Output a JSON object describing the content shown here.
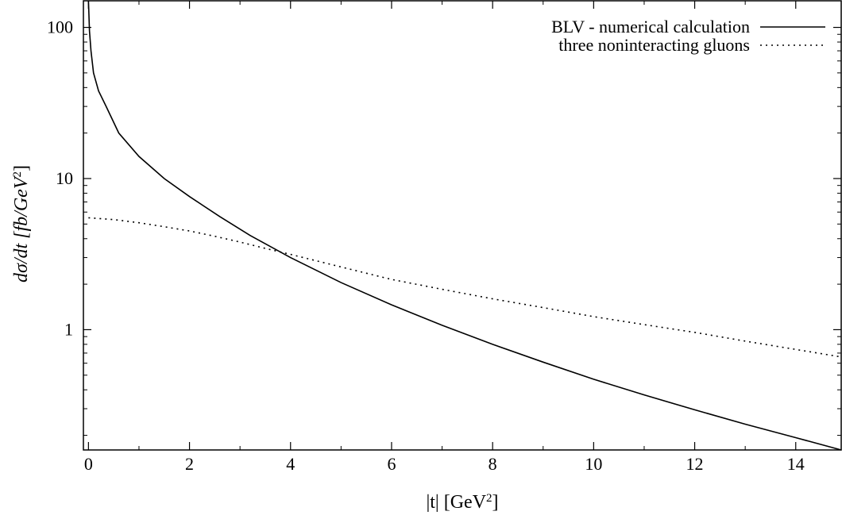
{
  "chart_data": {
    "type": "line",
    "title": "",
    "xlabel": {
      "pre": "|t|   [GeV",
      "sup": "2",
      "post": "]"
    },
    "ylabel": {
      "pre": "dσ/dt   [fb/GeV",
      "sup": "2",
      "post": "]"
    },
    "xlim": [
      -0.1,
      14.9
    ],
    "ylim": [
      0.16,
      150
    ],
    "yscale": "log",
    "grid": false,
    "legend_position": "top-right",
    "x_ticks": [
      0,
      2,
      4,
      6,
      8,
      10,
      12,
      14
    ],
    "x_tick_labels": [
      "0",
      "2",
      "4",
      "6",
      "8",
      "10",
      "12",
      "14"
    ],
    "y_major_ticks": [
      1,
      10,
      100
    ],
    "y_tick_labels": [
      "1",
      "10",
      "100"
    ],
    "series": [
      {
        "name": "BLV - numerical calculation",
        "style": "solid",
        "color": "#000000",
        "x": [
          0.0,
          0.02,
          0.05,
          0.1,
          0.2,
          0.35,
          0.6,
          1.0,
          1.5,
          2.0,
          2.6,
          3.2,
          4.0,
          5.0,
          6.0,
          7.0,
          8.0,
          9.0,
          10.0,
          11.0,
          12.0,
          13.0,
          14.0,
          14.9
        ],
        "y": [
          150,
          95,
          70,
          50,
          38,
          30,
          20,
          14,
          10,
          7.6,
          5.6,
          4.2,
          3.0,
          2.05,
          1.46,
          1.07,
          0.8,
          0.61,
          0.47,
          0.37,
          0.295,
          0.237,
          0.193,
          0.16
        ]
      },
      {
        "name": "three noninteracting gluons",
        "style": "dotted",
        "color": "#000000",
        "x": [
          0.0,
          0.5,
          1.0,
          1.5,
          2.0,
          2.5,
          3.0,
          3.5,
          4.0,
          5.0,
          6.0,
          7.0,
          8.0,
          9.0,
          10.0,
          11.0,
          12.0,
          13.0,
          14.0,
          14.9
        ],
        "y": [
          5.5,
          5.35,
          5.1,
          4.8,
          4.5,
          4.15,
          3.8,
          3.45,
          3.15,
          2.6,
          2.15,
          1.85,
          1.6,
          1.4,
          1.22,
          1.08,
          0.96,
          0.84,
          0.74,
          0.66
        ]
      }
    ]
  }
}
